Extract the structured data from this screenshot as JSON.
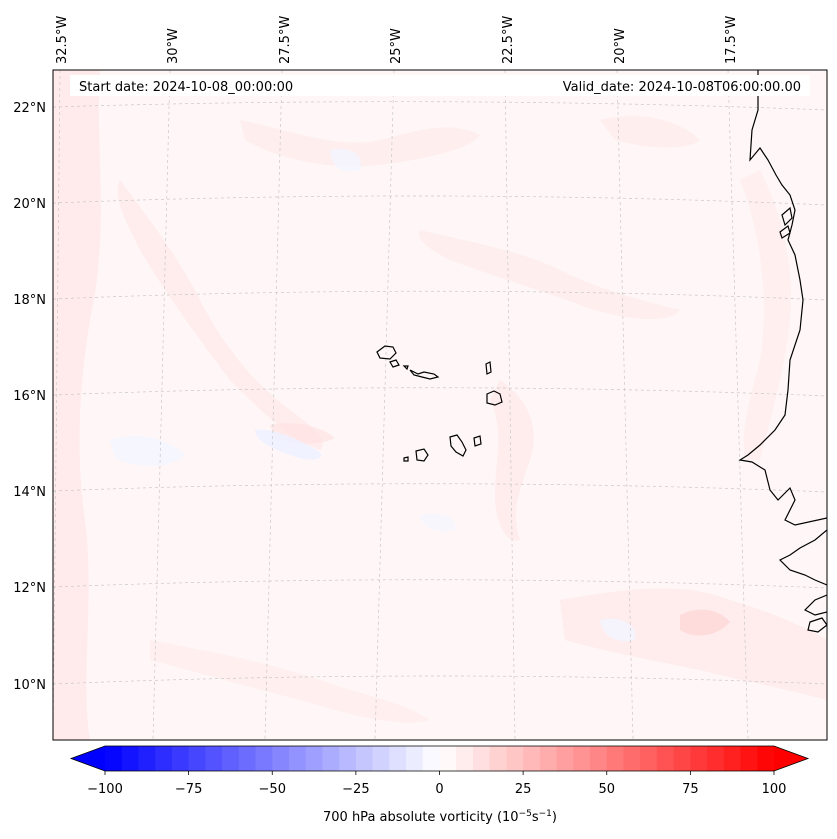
{
  "header": {
    "start_date": "Start date: 2024-10-08_00:00:00",
    "valid_date": "Valid_date: 2024-10-08T06:00:00.00"
  },
  "map": {
    "projection": "lambert-conformal",
    "region": "Cape Verde / West Africa coast",
    "lon_labels": [
      "32.5°W",
      "30°W",
      "27.5°W",
      "25°W",
      "22.5°W",
      "20°W",
      "17.5°W"
    ],
    "lat_labels": [
      "22°N",
      "20°N",
      "18°N",
      "16°N",
      "14°N",
      "12°N",
      "10°N"
    ],
    "field": "700 hPa absolute vorticity",
    "background_color": "#fff7f7",
    "coastline_color": "#000000",
    "gridline_color": "#c8c8c8",
    "gridline_style": "dashed"
  },
  "colorbar": {
    "title_prefix": "700 hPa absolute vorticity (10",
    "title_exp1": "−5",
    "title_mid": "s",
    "title_exp2": "−1",
    "title_suffix": ")",
    "tick_labels": [
      "−100",
      "−75",
      "−50",
      "−25",
      "0",
      "25",
      "50",
      "75",
      "100"
    ],
    "min": -100,
    "max": 100,
    "extend": "both",
    "levels": 40,
    "colormap": "bwr",
    "color_min": "#0000ff",
    "color_mid": "#ffffff",
    "color_max": "#ff0000"
  }
}
